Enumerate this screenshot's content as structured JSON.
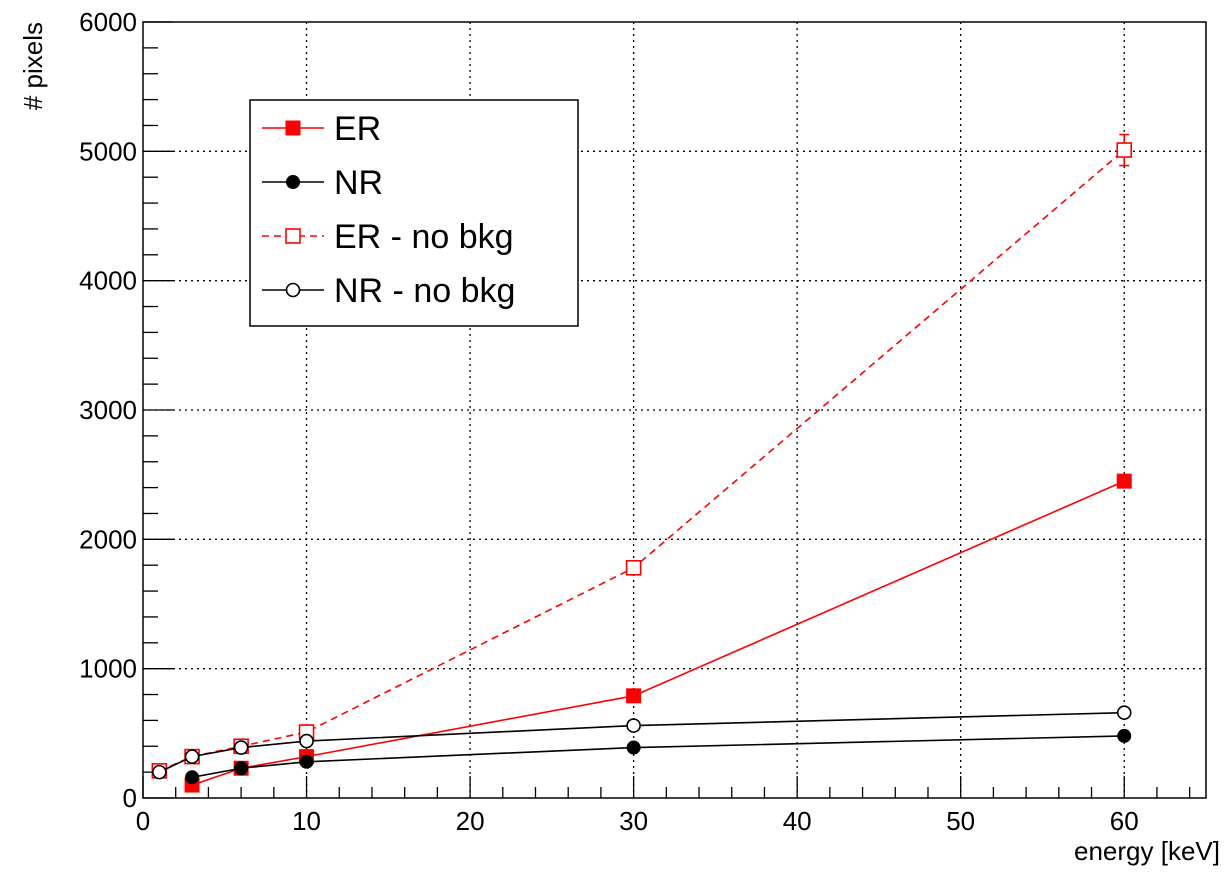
{
  "chart_data": {
    "type": "line",
    "title": "",
    "xlabel": "energy [keV]",
    "ylabel": "# pixels",
    "xlim": [
      0,
      65
    ],
    "ylim": [
      0,
      6000
    ],
    "xticks": [
      0,
      10,
      20,
      30,
      40,
      50,
      60
    ],
    "yticks": [
      0,
      1000,
      2000,
      3000,
      4000,
      5000,
      6000
    ],
    "x_minor_step": 2,
    "y_minor_step": 200,
    "grid": true,
    "legend_position": "top-left",
    "series": [
      {
        "name": "ER",
        "color": "#ff0000",
        "line_style": "solid",
        "marker": "filled-square",
        "x": [
          3,
          6,
          10,
          30,
          60
        ],
        "y": [
          100,
          230,
          320,
          790,
          2450
        ],
        "y_err": [
          0,
          0,
          0,
          0,
          0
        ]
      },
      {
        "name": "NR",
        "color": "#000000",
        "line_style": "solid",
        "marker": "filled-circle",
        "x": [
          3,
          6,
          10,
          30,
          60
        ],
        "y": [
          160,
          230,
          280,
          390,
          480
        ],
        "y_err": [
          0,
          0,
          0,
          0,
          0
        ]
      },
      {
        "name": "ER - no bkg",
        "color": "#ff0000",
        "line_style": "dashed",
        "marker": "open-square",
        "x": [
          1,
          3,
          6,
          10,
          30,
          60
        ],
        "y": [
          210,
          320,
          400,
          510,
          1780,
          5010
        ],
        "y_err": [
          0,
          0,
          0,
          0,
          0,
          120
        ]
      },
      {
        "name": "NR - no bkg",
        "color": "#000000",
        "line_style": "solid",
        "marker": "open-circle",
        "x": [
          1,
          3,
          6,
          10,
          30,
          60
        ],
        "y": [
          200,
          320,
          390,
          440,
          560,
          660
        ],
        "y_err": [
          0,
          0,
          0,
          0,
          0,
          0
        ]
      }
    ]
  }
}
